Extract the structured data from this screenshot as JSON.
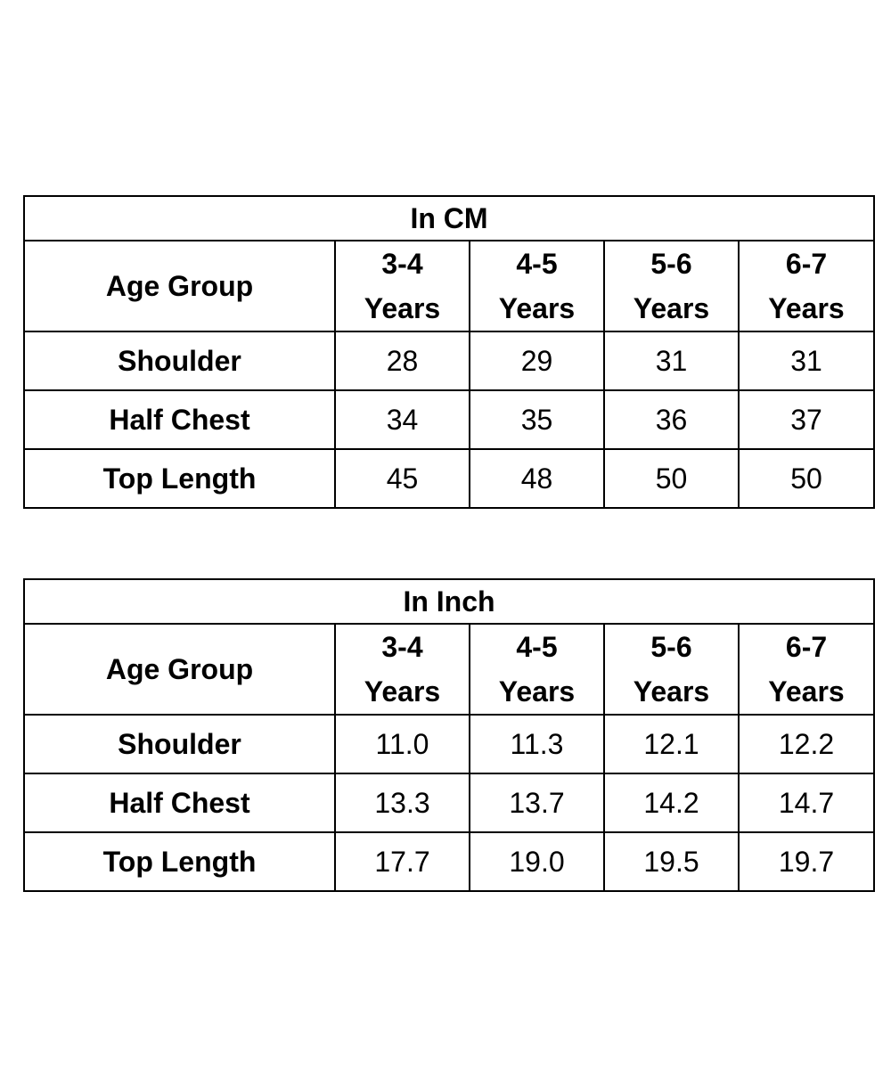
{
  "tables": [
    {
      "title": "In CM",
      "header_label": "Age Group",
      "columns": [
        {
          "range": "3-4",
          "unit": "Years"
        },
        {
          "range": "4-5",
          "unit": "Years"
        },
        {
          "range": "5-6",
          "unit": "Years"
        },
        {
          "range": "6-7",
          "unit": "Years"
        }
      ],
      "rows": [
        {
          "label": "Shoulder",
          "values": [
            "28",
            "29",
            "31",
            "31"
          ]
        },
        {
          "label": "Half Chest",
          "values": [
            "34",
            "35",
            "36",
            "37"
          ]
        },
        {
          "label": "Top Length",
          "values": [
            "45",
            "48",
            "50",
            "50"
          ]
        }
      ]
    },
    {
      "title": "In Inch",
      "header_label": "Age Group",
      "columns": [
        {
          "range": "3-4",
          "unit": "Years"
        },
        {
          "range": "4-5",
          "unit": "Years"
        },
        {
          "range": "5-6",
          "unit": "Years"
        },
        {
          "range": "6-7",
          "unit": "Years"
        }
      ],
      "rows": [
        {
          "label": "Shoulder",
          "values": [
            "11.0",
            "11.3",
            "12.1",
            "12.2"
          ]
        },
        {
          "label": "Half Chest",
          "values": [
            "13.3",
            "13.7",
            "14.2",
            "14.7"
          ]
        },
        {
          "label": "Top Length",
          "values": [
            "17.7",
            "19.0",
            "19.5",
            "19.7"
          ]
        }
      ]
    }
  ]
}
